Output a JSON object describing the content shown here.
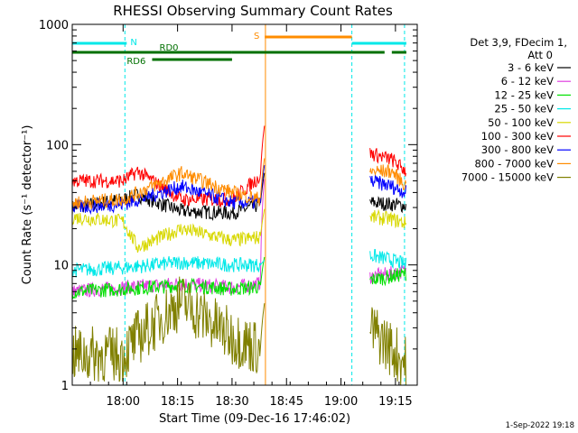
{
  "chart_data": {
    "type": "line",
    "title": "RHESSI Observing Summary Count Rates",
    "xlabel": "Start Time (09-Dec-16 17:46:02)",
    "ylabel": "Count Rate (s⁻¹ detector⁻¹)",
    "ylog": true,
    "ylim": [
      1,
      1000
    ],
    "xlim_minutes_after_17_46": [
      0,
      95
    ],
    "x_ticks": [
      {
        "label": "18:00",
        "minute": 14
      },
      {
        "label": "18:15",
        "minute": 29
      },
      {
        "label": "18:30",
        "minute": 44
      },
      {
        "label": "18:45",
        "minute": 59
      },
      {
        "label": "19:00",
        "minute": 74
      },
      {
        "label": "19:15",
        "minute": 89
      }
    ],
    "y_ticks": [
      {
        "label": "1",
        "value": 1
      },
      {
        "label": "10",
        "value": 10
      },
      {
        "label": "100",
        "value": 100
      },
      {
        "label": "1000",
        "value": 1000
      }
    ],
    "legend_header": [
      "Det 3,9, FDecim 1,",
      "Att 0"
    ],
    "legend_position": "right",
    "series": [
      {
        "name": "3 - 6 keV",
        "color": "#000000",
        "before": [
          [
            0,
            30
          ],
          [
            14,
            35
          ],
          [
            18,
            38
          ],
          [
            30,
            28
          ],
          [
            44,
            27
          ],
          [
            52,
            32
          ]
        ],
        "after": [
          [
            82,
            33
          ],
          [
            88,
            32
          ],
          [
            92,
            31
          ]
        ],
        "spike": 60
      },
      {
        "name": "6 - 12 keV",
        "color": "#e040e0",
        "before": [
          [
            0,
            6
          ],
          [
            14,
            6.5
          ],
          [
            30,
            7
          ],
          [
            44,
            6.5
          ],
          [
            52,
            7
          ]
        ],
        "after": [
          [
            82,
            8
          ],
          [
            88,
            8.5
          ],
          [
            92,
            9
          ]
        ],
        "spike": 55
      },
      {
        "name": "12 - 25 keV",
        "color": "#00e000",
        "before": [
          [
            0,
            6
          ],
          [
            14,
            6.3
          ],
          [
            30,
            6.8
          ],
          [
            44,
            6.3
          ],
          [
            52,
            6.6
          ]
        ],
        "after": [
          [
            82,
            7.5
          ],
          [
            88,
            8
          ],
          [
            92,
            8.5
          ]
        ],
        "spike": 12
      },
      {
        "name": "25 - 50 keV",
        "color": "#00e8e8",
        "before": [
          [
            0,
            9
          ],
          [
            14,
            9.5
          ],
          [
            30,
            10.5
          ],
          [
            44,
            10
          ],
          [
            52,
            10
          ]
        ],
        "after": [
          [
            82,
            12
          ],
          [
            88,
            11
          ],
          [
            92,
            10
          ]
        ],
        "spike": 11
      },
      {
        "name": "50 - 100 keV",
        "color": "#d8d800",
        "before": [
          [
            0,
            25
          ],
          [
            14,
            23
          ],
          [
            18,
            14
          ],
          [
            30,
            20
          ],
          [
            44,
            16
          ],
          [
            52,
            17
          ]
        ],
        "after": [
          [
            82,
            25
          ],
          [
            88,
            24
          ],
          [
            92,
            22
          ]
        ],
        "spike": 30
      },
      {
        "name": "100 - 300 keV",
        "color": "#ff0000",
        "before": [
          [
            0,
            50
          ],
          [
            14,
            50
          ],
          [
            18,
            60
          ],
          [
            30,
            35
          ],
          [
            44,
            35
          ],
          [
            52,
            55
          ]
        ],
        "after": [
          [
            82,
            85
          ],
          [
            88,
            75
          ],
          [
            92,
            60
          ]
        ],
        "spike": 150
      },
      {
        "name": "300 - 800 keV",
        "color": "#0000ff",
        "before": [
          [
            0,
            30
          ],
          [
            14,
            32
          ],
          [
            30,
            45
          ],
          [
            44,
            33
          ],
          [
            52,
            33
          ]
        ],
        "after": [
          [
            82,
            50
          ],
          [
            88,
            45
          ],
          [
            92,
            40
          ]
        ],
        "spike": 70
      },
      {
        "name": "800 - 7000 keV",
        "color": "#ff8c00",
        "before": [
          [
            0,
            33
          ],
          [
            14,
            35
          ],
          [
            30,
            58
          ],
          [
            44,
            40
          ],
          [
            52,
            35
          ]
        ],
        "after": [
          [
            82,
            60
          ],
          [
            88,
            60
          ],
          [
            92,
            45
          ]
        ],
        "spike": 80
      },
      {
        "name": "7000 - 15000 keV",
        "color": "#808000",
        "before": [
          [
            0,
            1.8
          ],
          [
            14,
            1.8
          ],
          [
            18,
            2.5
          ],
          [
            30,
            5
          ],
          [
            44,
            2.5
          ],
          [
            52,
            2
          ]
        ],
        "after": [
          [
            82,
            3
          ],
          [
            88,
            2
          ],
          [
            92,
            1.5
          ]
        ],
        "spike": 5
      }
    ],
    "flag_bars": [
      {
        "label": "N",
        "color": "#00e8e8",
        "segments": [
          [
            0,
            15
          ],
          [
            77,
            92
          ]
        ]
      },
      {
        "label": "S",
        "color": "#ff8c00",
        "segments": [
          [
            53,
            77
          ]
        ]
      },
      {
        "label": "RD0",
        "color": "#007000",
        "segments": [
          [
            0,
            44
          ],
          [
            44,
            77
          ],
          [
            77,
            86
          ],
          [
            88,
            92
          ]
        ]
      },
      {
        "label": "RD6",
        "color": "#007000",
        "segments": [
          [
            22,
            44
          ]
        ]
      }
    ],
    "vertical_markers": [
      {
        "minute": 14.5,
        "color": "#00e8e8"
      },
      {
        "minute": 77,
        "color": "#00e8e8"
      },
      {
        "minute": 91.5,
        "color": "#00e8e8"
      },
      {
        "minute": 53.2,
        "color": "#ff8c00"
      },
      {
        "minute": 0,
        "color": "#00e8e8"
      }
    ],
    "footer": "1-Sep-2022 19:18"
  }
}
